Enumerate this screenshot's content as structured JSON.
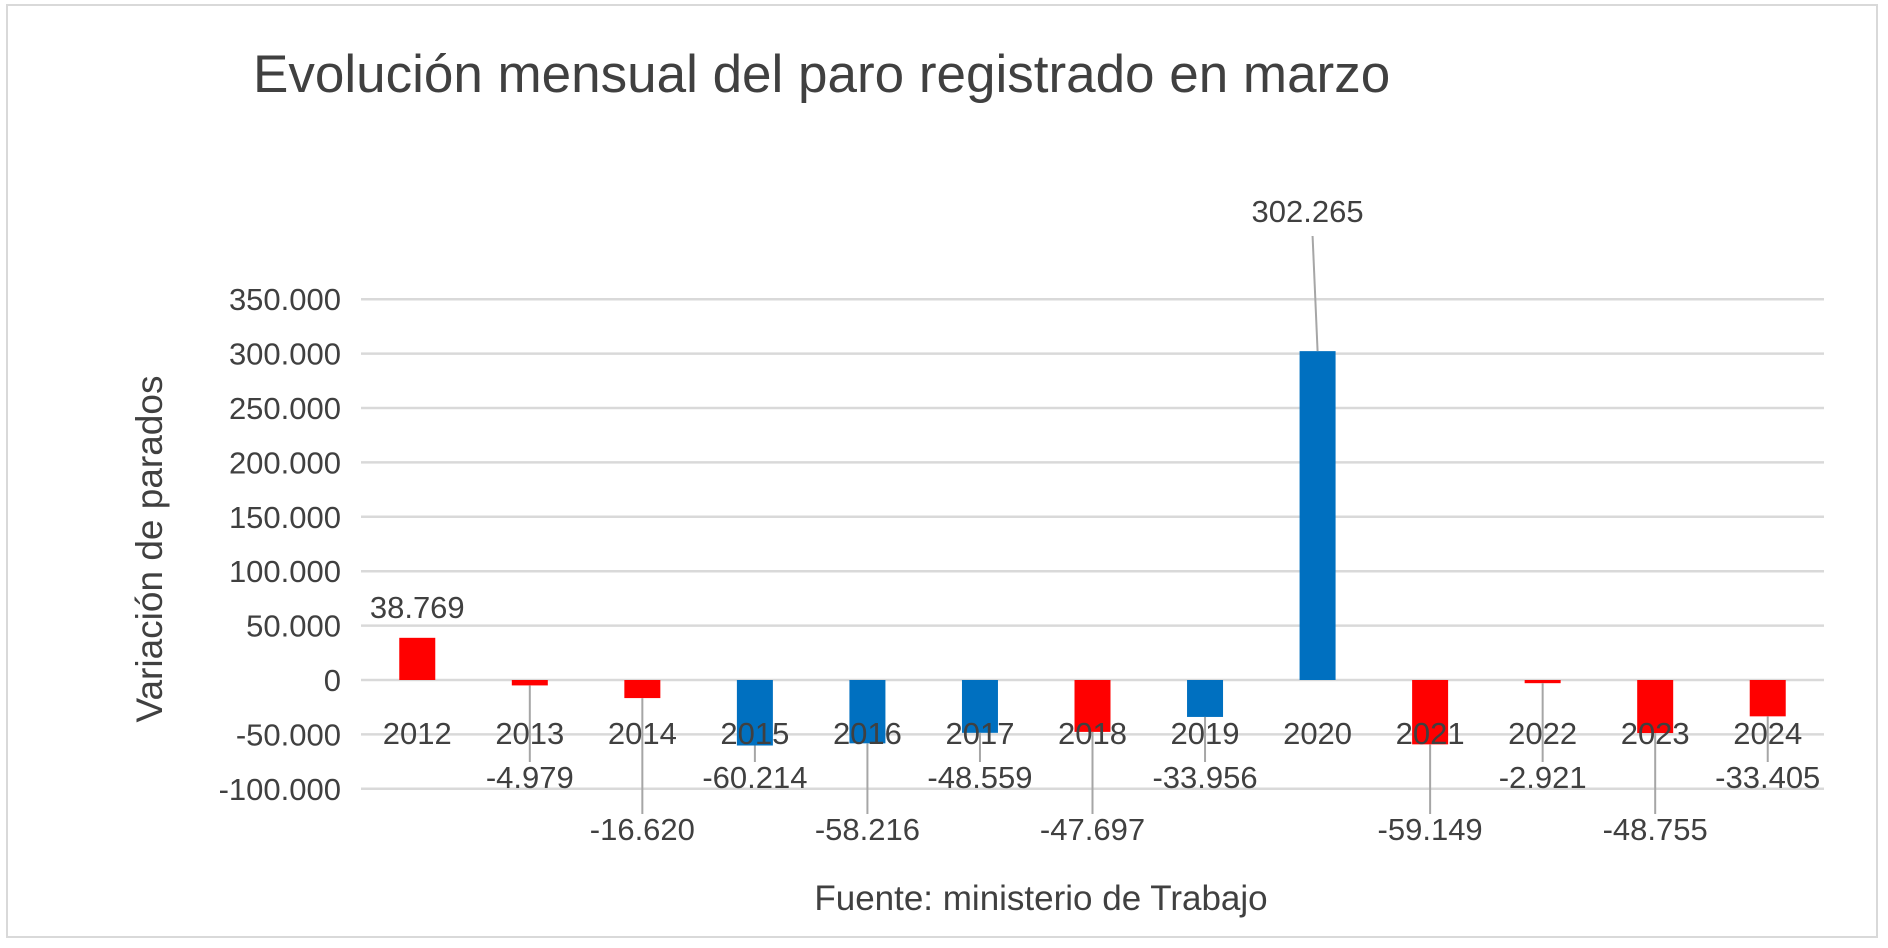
{
  "chart_data": {
    "type": "bar",
    "title": "Evolución mensual del paro registrado en marzo",
    "ylabel": "Variación de parados",
    "xlabel": "",
    "source": "Fuente: ministerio de Trabajo",
    "ylim": [
      -100000,
      350000
    ],
    "yticks": [
      350000,
      300000,
      250000,
      200000,
      150000,
      100000,
      50000,
      0,
      -50000,
      -100000
    ],
    "ytick_labels": [
      "350.000",
      "300.000",
      "250.000",
      "200.000",
      "150.000",
      "100.000",
      "50.000",
      "0",
      "-50.000",
      "-100.000"
    ],
    "grid": true,
    "legend": "none",
    "categories": [
      "2012",
      "2013",
      "2014",
      "2015",
      "2016",
      "2017",
      "2018",
      "2019",
      "2020",
      "2021",
      "2022",
      "2023",
      "2024"
    ],
    "values": [
      38769,
      -4979,
      -16620,
      -60214,
      -58216,
      -48559,
      -47697,
      -33956,
      302265,
      -59149,
      -2921,
      -48755,
      -33405
    ],
    "data_labels": [
      "38.769",
      "-4.979",
      "-16.620",
      "-60.214",
      "-58.216",
      "-48.559",
      "-47.697",
      "-33.956",
      "302.265",
      "-59.149",
      "-2.921",
      "-48.755",
      "-33.405"
    ],
    "bar_colors": [
      "#ff0000",
      "#ff0000",
      "#ff0000",
      "#0070c0",
      "#0070c0",
      "#0070c0",
      "#ff0000",
      "#0070c0",
      "#0070c0",
      "#ff0000",
      "#ff0000",
      "#ff0000",
      "#ff0000"
    ],
    "colors": {
      "red": "#ff0000",
      "blue": "#0070c0",
      "gridline": "#d9d9d9",
      "text": "#404040"
    }
  }
}
